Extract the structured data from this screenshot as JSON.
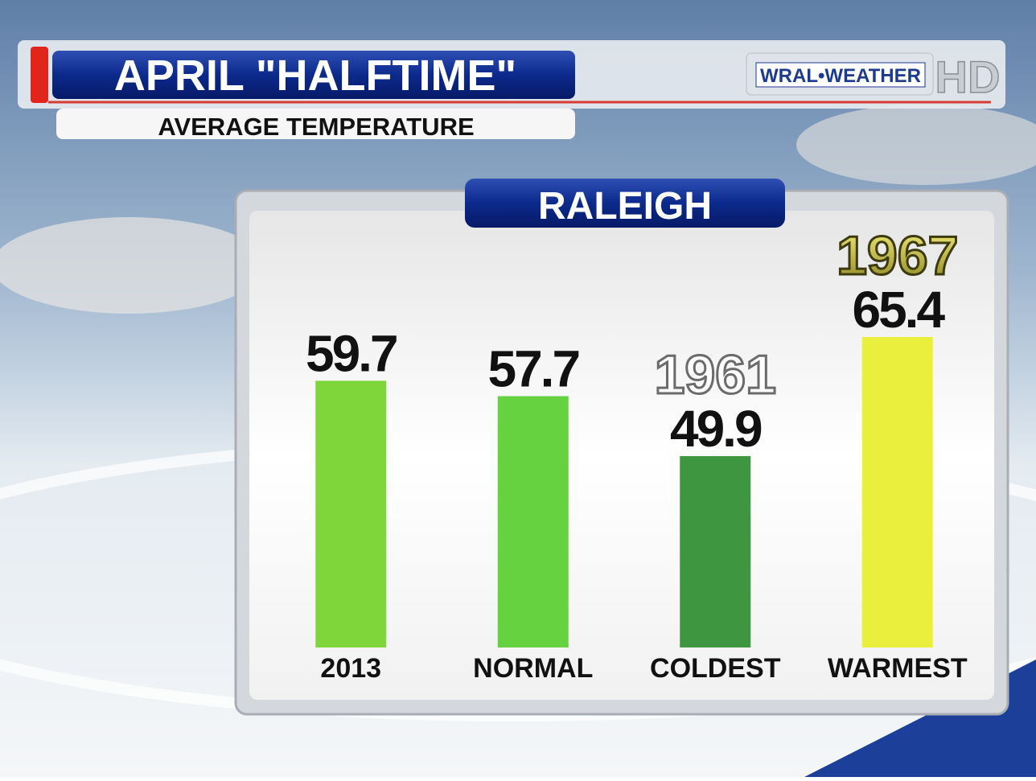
{
  "chart_data": {
    "type": "bar",
    "title": "APRIL \"HALFTIME\"",
    "subtitle": "AVERAGE TEMPERATURE",
    "panel_title": "RALEIGH",
    "logo_text": "WRAL•WEATHER",
    "logo_badge": "HD",
    "categories": [
      "2013",
      "NORMAL",
      "COLDEST",
      "WARMEST"
    ],
    "values": [
      59.7,
      57.7,
      49.9,
      65.4
    ],
    "year_labels": [
      null,
      null,
      "1961",
      "1967"
    ],
    "colors": [
      "#7ed63a",
      "#66d23f",
      "#3f9640",
      "#eaef3d"
    ],
    "ylim": [
      25,
      70
    ]
  }
}
